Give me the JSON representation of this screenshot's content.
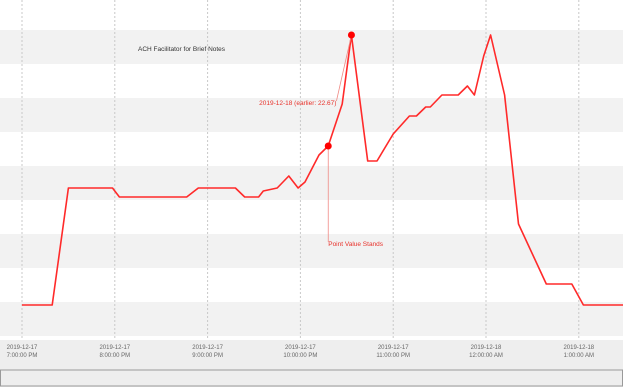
{
  "chart_data": {
    "type": "line",
    "title": "ACH Facilitator for Brief Notes",
    "xlabel": "",
    "ylabel": "",
    "grid": {
      "horizontal_bands": true,
      "vertical_dashed": true
    },
    "x_ticks": [
      {
        "h": 0,
        "line1": "2019-12-17",
        "line2": "7:00:00 PM"
      },
      {
        "h": 2,
        "line1": "2019-12-17",
        "line2": "8:00:00 PM"
      },
      {
        "h": 4,
        "line1": "2019-12-17",
        "line2": "9:00:00 PM"
      },
      {
        "h": 6,
        "line1": "2019-12-17",
        "line2": "10:00:00 PM"
      },
      {
        "h": 8,
        "line1": "2019-12-17",
        "line2": "11:00:00 PM"
      },
      {
        "h": 10,
        "line1": "2019-12-18",
        "line2": "12:00:00 AM"
      },
      {
        "h": 12,
        "line1": "2019-12-18",
        "line2": "1:00:00 AM"
      }
    ],
    "ylim": [
      0,
      100
    ],
    "series": [
      {
        "color": "#ff2a2a",
        "points": [
          [
            0.0,
            5
          ],
          [
            0.65,
            5
          ],
          [
            1.0,
            44
          ],
          [
            1.95,
            44
          ],
          [
            2.1,
            41
          ],
          [
            3.0,
            41
          ],
          [
            3.55,
            41
          ],
          [
            3.8,
            44
          ],
          [
            4.6,
            44
          ],
          [
            4.8,
            41
          ],
          [
            5.1,
            41
          ],
          [
            5.2,
            43
          ],
          [
            5.5,
            44
          ],
          [
            5.75,
            48
          ],
          [
            5.95,
            44
          ],
          [
            6.1,
            46
          ],
          [
            6.4,
            55
          ],
          [
            6.6,
            58
          ],
          [
            6.9,
            72
          ],
          [
            7.1,
            95
          ],
          [
            7.45,
            53
          ],
          [
            7.65,
            53
          ],
          [
            8.0,
            62
          ],
          [
            8.35,
            68
          ],
          [
            8.5,
            68
          ],
          [
            8.7,
            71
          ],
          [
            8.8,
            71
          ],
          [
            9.05,
            75
          ],
          [
            9.4,
            75
          ],
          [
            9.6,
            78
          ],
          [
            9.75,
            75
          ],
          [
            9.95,
            88
          ],
          [
            10.1,
            95
          ],
          [
            10.4,
            75
          ],
          [
            10.7,
            32
          ],
          [
            11.3,
            12
          ],
          [
            11.85,
            12
          ],
          [
            12.1,
            5
          ],
          [
            13.0,
            5
          ]
        ]
      }
    ],
    "annotations": [
      {
        "x": 7.1,
        "y": 95,
        "text": "2019-12-18 (earlier: 22.67)"
      },
      {
        "x": 6.6,
        "y": 58,
        "text": "Point Value Stands"
      }
    ]
  }
}
